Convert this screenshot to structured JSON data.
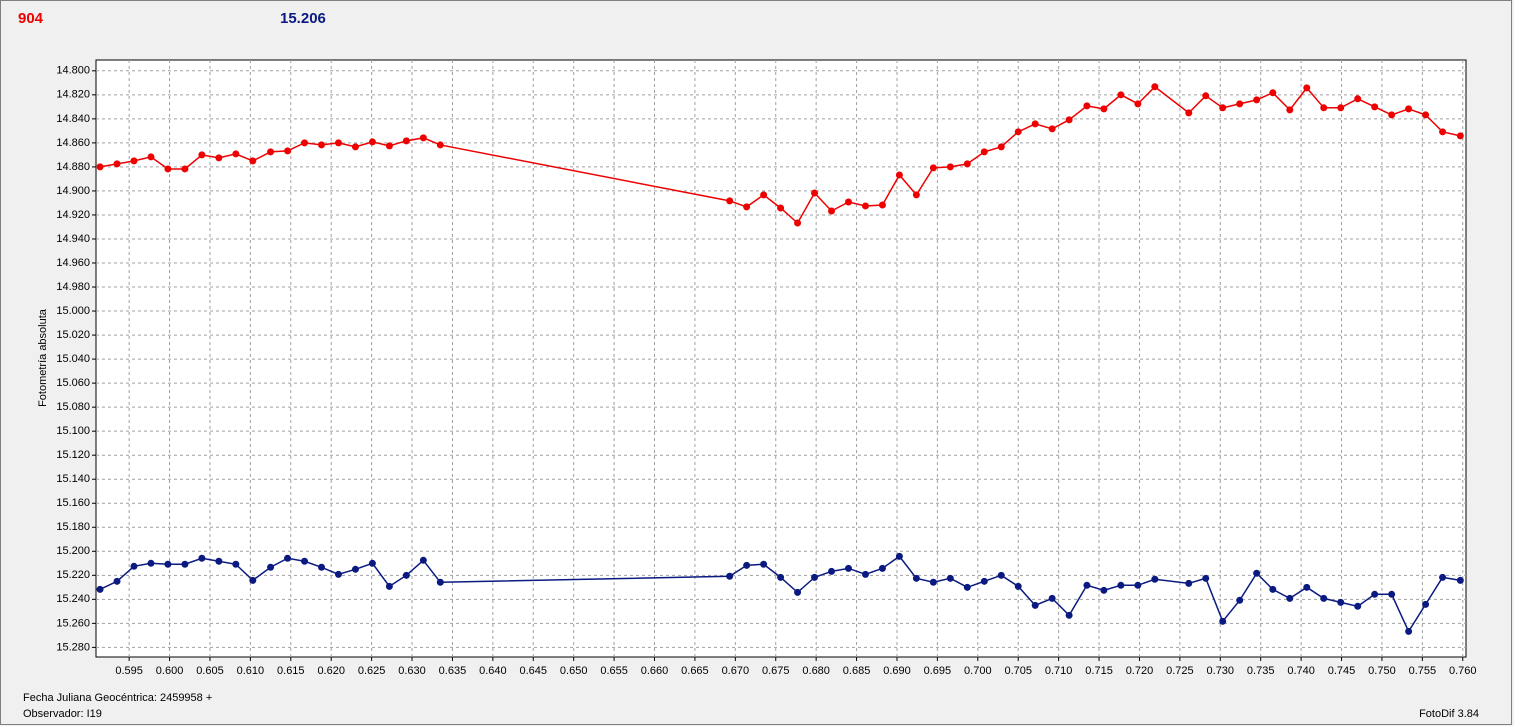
{
  "chart_data": {
    "type": "line",
    "y_label": "Fotometría absoluta",
    "x_label": "Fecha Juliana Geocéntrica: 2459958 +",
    "observer": "Observador: I19",
    "software": "FotoDif 3.84",
    "grid": true,
    "marker": "circle",
    "xlim": [
      0.5909,
      0.7604
    ],
    "ylim": [
      15.288,
      14.791
    ],
    "xticks": [
      0.595,
      {
        "value": 0.6,
        "label": "0.600"
      },
      0.605,
      {
        "value": 0.61,
        "label": "0.610"
      },
      0.615,
      {
        "value": 0.62,
        "label": "0.620"
      },
      0.625,
      {
        "value": 0.63,
        "label": "0.630"
      },
      0.635,
      {
        "value": 0.64,
        "label": "0.640"
      },
      0.645,
      {
        "value": 0.65,
        "label": "0.650"
      },
      0.655,
      {
        "value": 0.66,
        "label": "0.660"
      },
      0.665,
      {
        "value": 0.67,
        "label": "0.670"
      },
      0.675,
      {
        "value": 0.68,
        "label": "0.680"
      },
      0.685,
      {
        "value": 0.69,
        "label": "0.690"
      },
      0.695,
      {
        "value": 0.7,
        "label": "0.700"
      },
      0.705,
      {
        "value": 0.71,
        "label": "0.710"
      },
      0.715,
      {
        "value": 0.72,
        "label": "0.720"
      },
      0.725,
      {
        "value": 0.73,
        "label": "0.730"
      },
      0.735,
      {
        "value": 0.74,
        "label": "0.740"
      },
      0.745,
      {
        "value": 0.75,
        "label": "0.750"
      },
      0.755,
      {
        "value": 0.76,
        "label": "0.760"
      }
    ],
    "yticks": [
      {
        "value": 14.8,
        "label": "14.800"
      },
      {
        "value": 14.82,
        "label": "14.820"
      },
      {
        "value": 14.84,
        "label": "14.840"
      },
      {
        "value": 14.86,
        "label": "14.860"
      },
      {
        "value": 14.88,
        "label": "14.880"
      },
      {
        "value": 14.9,
        "label": "14.900"
      },
      {
        "value": 14.92,
        "label": "14.920"
      },
      {
        "value": 14.94,
        "label": "14.940"
      },
      {
        "value": 14.96,
        "label": "14.960"
      },
      {
        "value": 14.98,
        "label": "14.980"
      },
      {
        "value": 15,
        "label": "15.000"
      },
      {
        "value": 15.02,
        "label": "15.020"
      },
      {
        "value": 15.04,
        "label": "15.040"
      },
      {
        "value": 15.06,
        "label": "15.060"
      },
      {
        "value": 15.08,
        "label": "15.080"
      },
      {
        "value": 15.1,
        "label": "15.100"
      },
      {
        "value": 15.12,
        "label": "15.120"
      },
      {
        "value": 15.14,
        "label": "15.140"
      },
      {
        "value": 15.16,
        "label": "15.160"
      },
      {
        "value": 15.18,
        "label": "15.180"
      },
      {
        "value": 15.2,
        "label": "15.200"
      },
      {
        "value": 15.22,
        "label": "15.220"
      },
      {
        "value": 15.24,
        "label": "15.240"
      },
      {
        "value": 15.26,
        "label": "15.260"
      },
      {
        "value": 15.28,
        "label": "15.280"
      }
    ],
    "x": [
      0.5914,
      0.5935,
      0.5956,
      0.5977,
      0.5998,
      0.6019,
      0.604,
      0.6061,
      0.6082,
      0.6103,
      0.6125,
      0.6146,
      0.6167,
      0.6188,
      0.6209,
      0.623,
      0.6251,
      0.6272,
      0.6293,
      0.6314,
      0.6335,
      0.6693,
      0.6714,
      0.6735,
      0.6756,
      0.6777,
      0.6798,
      0.6819,
      0.684,
      0.6861,
      0.6882,
      0.6903,
      0.6924,
      0.6945,
      0.6966,
      0.6987,
      0.7008,
      0.7029,
      0.705,
      0.7071,
      0.7092,
      0.7113,
      0.7135,
      0.7156,
      0.7177,
      0.7198,
      0.7219,
      0.7261,
      0.7282,
      0.7303,
      0.7324,
      0.7345,
      0.7365,
      0.7386,
      0.7407,
      0.7428,
      0.7449,
      0.747,
      0.7491,
      0.7512,
      0.7533,
      0.7554,
      0.7575,
      0.7597
    ],
    "series": [
      {
        "name": "904",
        "color": "#ee0000",
        "values": [
          14.88,
          14.8775,
          14.875,
          14.8717,
          14.8817,
          14.8817,
          14.87,
          14.8725,
          14.8692,
          14.875,
          14.8675,
          14.8667,
          14.86,
          14.8617,
          14.86,
          14.8633,
          14.8592,
          14.8625,
          14.8583,
          14.8558,
          14.8617,
          14.9083,
          14.9133,
          14.9033,
          14.9142,
          14.9267,
          14.9017,
          14.9167,
          14.9092,
          14.9125,
          14.9117,
          14.8867,
          14.9033,
          14.8808,
          14.88,
          14.8775,
          14.8675,
          14.8633,
          14.8508,
          14.8442,
          14.8483,
          14.8408,
          14.8292,
          14.8317,
          14.82,
          14.8275,
          14.8133,
          14.835,
          14.8208,
          14.8308,
          14.8275,
          14.8242,
          14.8183,
          14.8325,
          14.8142,
          14.8308,
          14.8308,
          14.8233,
          14.83,
          14.8367,
          14.8317,
          14.8367,
          14.8508,
          14.8542
        ]
      },
      {
        "name": "15.206",
        "color": "#0a1a80",
        "values": [
          15.2317,
          15.225,
          15.2125,
          15.21,
          15.2108,
          15.2108,
          15.2058,
          15.2083,
          15.2108,
          15.2242,
          15.2133,
          15.2058,
          15.2083,
          15.2133,
          15.2192,
          15.215,
          15.21,
          15.2292,
          15.22,
          15.2075,
          15.2258,
          15.2208,
          15.2117,
          15.2108,
          15.2217,
          15.2342,
          15.2217,
          15.2167,
          15.2142,
          15.2192,
          15.2142,
          15.2042,
          15.2225,
          15.2258,
          15.2225,
          15.23,
          15.225,
          15.22,
          15.2292,
          15.245,
          15.2392,
          15.2533,
          15.2283,
          15.2325,
          15.2283,
          15.2283,
          15.2233,
          15.2267,
          15.2225,
          15.2583,
          15.2408,
          15.2183,
          15.2317,
          15.2392,
          15.23,
          15.2392,
          15.2425,
          15.2458,
          15.2358,
          15.2358,
          15.2667,
          15.2442,
          15.2217,
          15.2242
        ]
      }
    ]
  }
}
